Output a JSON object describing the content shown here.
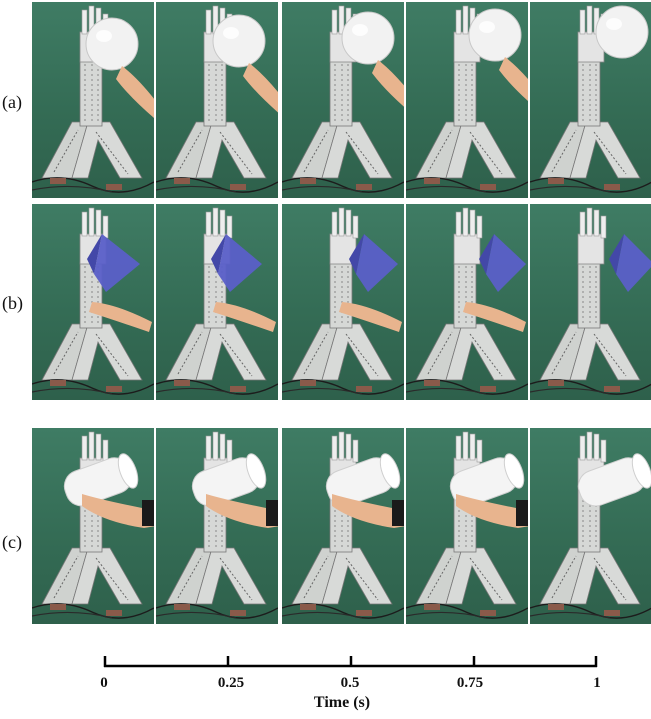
{
  "rows": [
    {
      "label": "(a)",
      "object": "sphere",
      "object_color": "#f2f2f2"
    },
    {
      "label": "(b)",
      "object": "wedge",
      "object_color": "#5a5fc8"
    },
    {
      "label": "(c)",
      "object": "cylinder",
      "object_color": "#f4f4f4"
    }
  ],
  "axis": {
    "title": "Time (s)",
    "ticks": [
      "0",
      "0.25",
      "0.5",
      "0.75",
      "1"
    ]
  },
  "frames_per_row": 5
}
